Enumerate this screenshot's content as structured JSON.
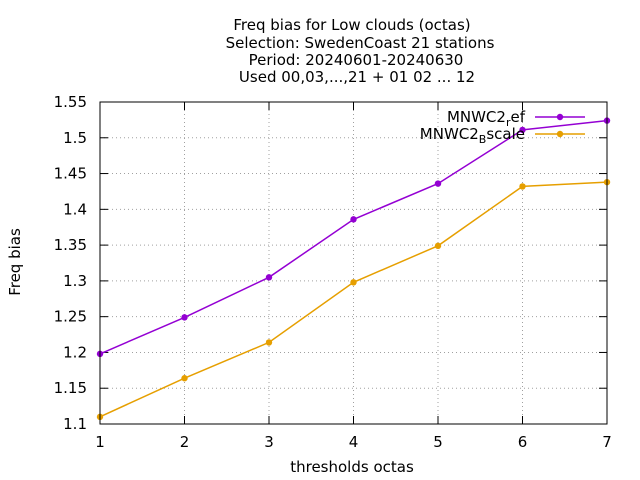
{
  "chart_data": {
    "type": "line",
    "title_lines": [
      "Freq bias  for Low clouds (octas)",
      "Selection: SwedenCoast     21 stations",
      "Period: 20240601-20240630",
      "Used 00,03,...,21 + 01 02 ... 12"
    ],
    "xlabel": "thresholds octas",
    "ylabel": "Freq bias",
    "x": [
      1,
      2,
      3,
      4,
      5,
      6,
      7
    ],
    "xlim": [
      1,
      7
    ],
    "ylim": [
      1.1,
      1.55
    ],
    "x_ticks": [
      "1",
      "2",
      "3",
      "4",
      "5",
      "6",
      "7"
    ],
    "y_ticks": [
      "1.1",
      "1.15",
      "1.2",
      "1.25",
      "1.3",
      "1.35",
      "1.4",
      "1.45",
      "1.5",
      "1.55"
    ],
    "grid": true,
    "legend_position": "top-right",
    "series": [
      {
        "name": "MNWC2_ref",
        "legend_main": "MNWC2",
        "legend_sub": "r",
        "legend_tail": "ef",
        "color": "#9400d3",
        "values": [
          1.198,
          1.249,
          1.305,
          1.386,
          1.436,
          1.511,
          1.524
        ]
      },
      {
        "name": "MNWC2_Bscale",
        "legend_main": "MNWC2",
        "legend_sub": "B",
        "legend_tail": "scale",
        "color": "#e69f00",
        "values": [
          1.11,
          1.164,
          1.214,
          1.298,
          1.349,
          1.432,
          1.438
        ]
      }
    ]
  }
}
